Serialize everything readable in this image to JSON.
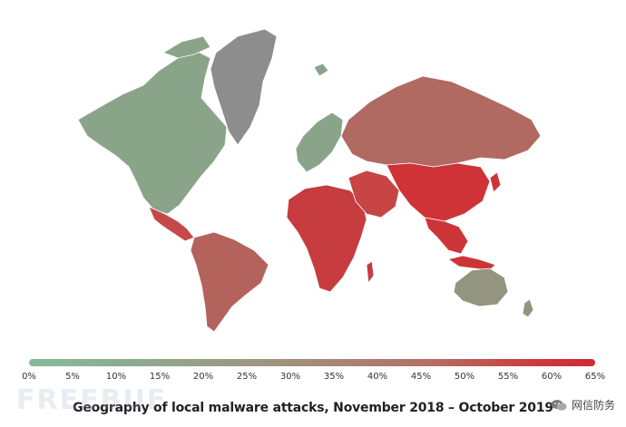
{
  "map": {
    "title": "Geography of local malware attacks, November 2018 – October 2019",
    "legend": {
      "ticks": [
        "0%",
        "5%",
        "10%",
        "15%",
        "20%",
        "25%",
        "30%",
        "35%",
        "40%",
        "45%",
        "50%",
        "55%",
        "60%",
        "65%"
      ],
      "range": [
        0,
        65
      ],
      "unit": "%",
      "color_low": "#86b99a",
      "color_mid": "#a0927f",
      "color_high": "#d12a34"
    },
    "regions": [
      {
        "name": "Greenland",
        "level": "no-data",
        "color": "#8d8d8d"
      },
      {
        "name": "North America",
        "level": "low",
        "color": "#8aa48a"
      },
      {
        "name": "Central America",
        "level": "high",
        "color": "#c44a4a"
      },
      {
        "name": "South America",
        "level": "medium-high",
        "color": "#b3625c"
      },
      {
        "name": "Western Europe",
        "level": "low",
        "color": "#8aa48a"
      },
      {
        "name": "Russia",
        "level": "medium-high",
        "color": "#b06a62"
      },
      {
        "name": "Africa",
        "level": "high",
        "color": "#c63c3f"
      },
      {
        "name": "Middle East",
        "level": "high",
        "color": "#c74545"
      },
      {
        "name": "China",
        "level": "very-high",
        "color": "#cf3337"
      },
      {
        "name": "Southeast Asia",
        "level": "very-high",
        "color": "#cd3438"
      },
      {
        "name": "Australia",
        "level": "low-medium",
        "color": "#939580"
      }
    ]
  },
  "watermark": {
    "left_text": "FREEBUF",
    "right_text": "网信防务"
  }
}
